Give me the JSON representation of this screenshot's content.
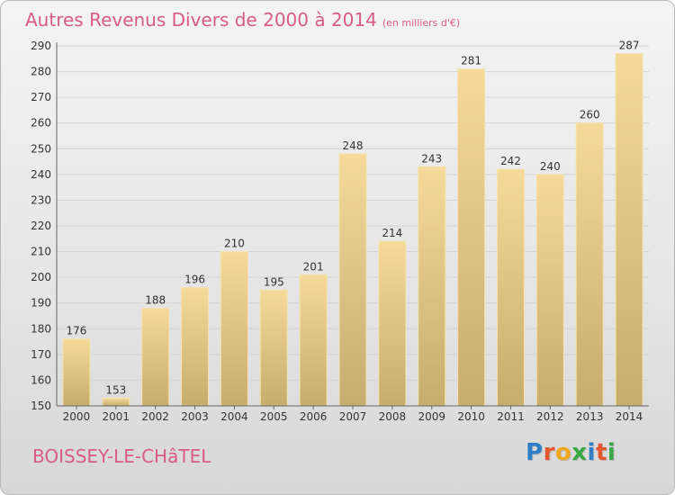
{
  "title": "Autres Revenus Divers de 2000 à 2014",
  "subtitle": "(en milliers d'€)",
  "place": "BOISSEY-LE-CHâTEL",
  "logo": {
    "letters": [
      "P",
      "r",
      "o",
      "x",
      "i",
      "t",
      "i"
    ],
    "colors": [
      "#2f7fc8",
      "#e4572e",
      "#f0a71e",
      "#3aa845",
      "#2f7fc8",
      "#e4572e",
      "#3aa845"
    ]
  },
  "colors": {
    "bar_top": "#f5da9a",
    "bar_bottom": "#c6ad6d",
    "grid": "#d2d2d2",
    "axis": "#666666",
    "title": "#d85c84"
  },
  "chart_data": {
    "type": "bar",
    "categories": [
      "2000",
      "2001",
      "2002",
      "2003",
      "2004",
      "2005",
      "2006",
      "2007",
      "2008",
      "2009",
      "2010",
      "2011",
      "2012",
      "2013",
      "2014"
    ],
    "values": [
      176,
      153,
      188,
      196,
      210,
      195,
      201,
      248,
      214,
      243,
      281,
      242,
      240,
      260,
      287
    ],
    "ylim": [
      150,
      290
    ],
    "yticks": [
      150,
      160,
      170,
      180,
      190,
      200,
      210,
      220,
      230,
      240,
      250,
      260,
      270,
      280,
      290
    ],
    "grid": true,
    "data_labels": true
  }
}
